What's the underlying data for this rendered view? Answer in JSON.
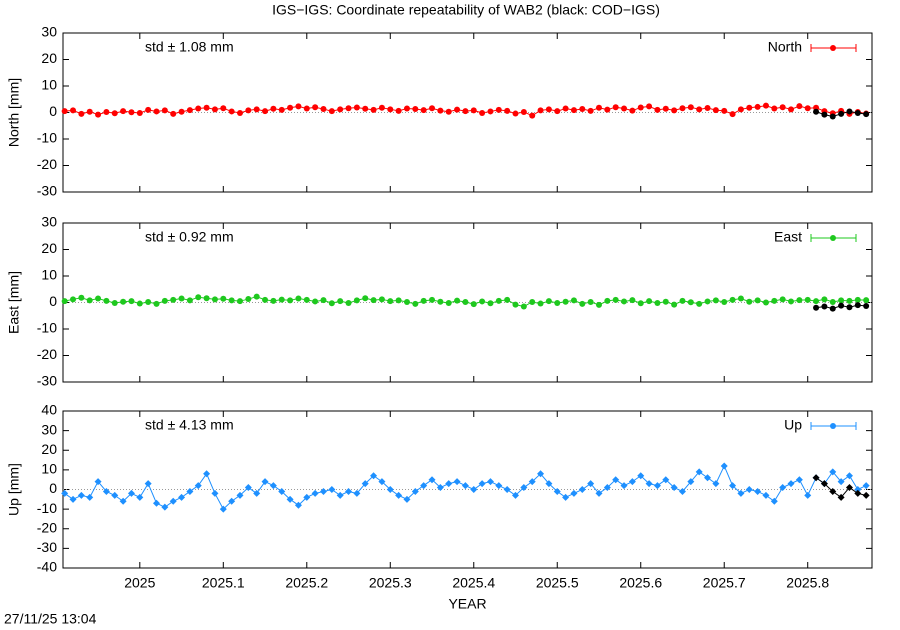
{
  "title": "IGS−IGS: Coordinate repeatability of WAB2 (black: COD−IGS)",
  "timestamp": "27/11/25 13:04",
  "chart_data": [
    {
      "type": "scatter",
      "ylabel": "North [mm]",
      "annotation": "std ± 1.08 mm",
      "marker": "circle",
      "xlim": [
        2024.908,
        2025.877
      ],
      "ylim": [
        -30,
        30
      ],
      "yticks": [
        -30,
        -20,
        -10,
        0,
        10,
        20,
        30
      ],
      "x": [
        2024.91,
        2024.92,
        2024.93,
        2024.94,
        2024.95,
        2024.96,
        2024.97,
        2024.98,
        2024.99,
        2025.0,
        2025.01,
        2025.02,
        2025.03,
        2025.04,
        2025.05,
        2025.06,
        2025.07,
        2025.08,
        2025.09,
        2025.1,
        2025.11,
        2025.12,
        2025.13,
        2025.14,
        2025.15,
        2025.16,
        2025.17,
        2025.18,
        2025.19,
        2025.2,
        2025.21,
        2025.22,
        2025.23,
        2025.24,
        2025.25,
        2025.26,
        2025.27,
        2025.28,
        2025.29,
        2025.3,
        2025.31,
        2025.32,
        2025.33,
        2025.34,
        2025.35,
        2025.36,
        2025.37,
        2025.38,
        2025.39,
        2025.4,
        2025.41,
        2025.42,
        2025.43,
        2025.44,
        2025.45,
        2025.46,
        2025.47,
        2025.48,
        2025.49,
        2025.5,
        2025.51,
        2025.52,
        2025.53,
        2025.54,
        2025.55,
        2025.56,
        2025.57,
        2025.58,
        2025.59,
        2025.6,
        2025.61,
        2025.62,
        2025.63,
        2025.64,
        2025.65,
        2025.66,
        2025.67,
        2025.68,
        2025.69,
        2025.7,
        2025.71,
        2025.72,
        2025.73,
        2025.74,
        2025.75,
        2025.76,
        2025.77,
        2025.78,
        2025.79,
        2025.8,
        2025.81,
        2025.82,
        2025.83,
        2025.84,
        2025.85,
        2025.86,
        2025.87
      ],
      "series": [
        {
          "name": "North",
          "color": "#ff0000",
          "values": [
            0.5,
            0.8,
            -0.5,
            0.3,
            -0.8,
            0.2,
            -0.3,
            0.5,
            0.1,
            -0.2,
            1.0,
            0.4,
            0.8,
            -0.5,
            0.3,
            0.9,
            1.5,
            1.8,
            1.2,
            1.6,
            0.4,
            -0.2,
            0.8,
            1.2,
            0.5,
            1.4,
            1.0,
            1.8,
            2.3,
            1.5,
            2.0,
            1.3,
            0.5,
            1.2,
            1.6,
            1.9,
            1.4,
            1.0,
            1.8,
            1.2,
            0.6,
            1.5,
            1.3,
            0.9,
            1.6,
            0.7,
            0.3,
            1.1,
            0.5,
            0.8,
            -0.2,
            0.4,
            1.0,
            0.6,
            -0.4,
            0.2,
            -1.2,
            0.8,
            1.2,
            0.5,
            1.5,
            0.9,
            1.3,
            0.6,
            1.8,
            1.1,
            2.0,
            1.5,
            0.7,
            1.9,
            2.3,
            1.0,
            1.4,
            0.8,
            1.6,
            2.0,
            1.2,
            1.7,
            0.9,
            0.6,
            -0.6,
            1.2,
            1.8,
            2.1,
            2.6,
            1.5,
            2.0,
            1.2,
            2.4,
            1.6,
            1.8,
            0.5,
            -0.3,
            0.6,
            -0.5,
            0.2,
            -0.4
          ]
        },
        {
          "color": "#000000",
          "x": [
            2025.81,
            2025.82,
            2025.83,
            2025.84,
            2025.85,
            2025.86,
            2025.87
          ],
          "values": [
            0.3,
            -0.8,
            -1.5,
            -0.5,
            0.4,
            -0.2,
            -0.6
          ]
        }
      ]
    },
    {
      "type": "scatter",
      "ylabel": "East [mm]",
      "annotation": "std ± 0.92 mm",
      "marker": "circle",
      "xlim": [
        2024.908,
        2025.877
      ],
      "ylim": [
        -30,
        30
      ],
      "yticks": [
        -30,
        -20,
        -10,
        0,
        10,
        20,
        30
      ],
      "x": [
        2024.91,
        2024.92,
        2024.93,
        2024.94,
        2024.95,
        2024.96,
        2024.97,
        2024.98,
        2024.99,
        2025.0,
        2025.01,
        2025.02,
        2025.03,
        2025.04,
        2025.05,
        2025.06,
        2025.07,
        2025.08,
        2025.09,
        2025.1,
        2025.11,
        2025.12,
        2025.13,
        2025.14,
        2025.15,
        2025.16,
        2025.17,
        2025.18,
        2025.19,
        2025.2,
        2025.21,
        2025.22,
        2025.23,
        2025.24,
        2025.25,
        2025.26,
        2025.27,
        2025.28,
        2025.29,
        2025.3,
        2025.31,
        2025.32,
        2025.33,
        2025.34,
        2025.35,
        2025.36,
        2025.37,
        2025.38,
        2025.39,
        2025.4,
        2025.41,
        2025.42,
        2025.43,
        2025.44,
        2025.45,
        2025.46,
        2025.47,
        2025.48,
        2025.49,
        2025.5,
        2025.51,
        2025.52,
        2025.53,
        2025.54,
        2025.55,
        2025.56,
        2025.57,
        2025.58,
        2025.59,
        2025.6,
        2025.61,
        2025.62,
        2025.63,
        2025.64,
        2025.65,
        2025.66,
        2025.67,
        2025.68,
        2025.69,
        2025.7,
        2025.71,
        2025.72,
        2025.73,
        2025.74,
        2025.75,
        2025.76,
        2025.77,
        2025.78,
        2025.79,
        2025.8,
        2025.81,
        2025.82,
        2025.83,
        2025.84,
        2025.85,
        2025.86,
        2025.87
      ],
      "series": [
        {
          "name": "East",
          "color": "#1ec81e",
          "values": [
            0.5,
            1.2,
            1.8,
            0.8,
            1.5,
            0.6,
            -0.2,
            0.3,
            0.5,
            -0.4,
            0.2,
            -0.5,
            0.6,
            1.0,
            1.5,
            0.8,
            2.0,
            1.6,
            1.2,
            1.4,
            0.8,
            0.5,
            1.3,
            2.2,
            1.0,
            0.6,
            1.1,
            0.8,
            1.5,
            1.0,
            0.4,
            0.9,
            -0.3,
            0.5,
            -0.2,
            0.8,
            1.6,
            0.9,
            1.2,
            0.5,
            0.8,
            0.2,
            -0.5,
            0.6,
            1.0,
            0.3,
            -0.2,
            0.7,
            0.2,
            -0.6,
            0.4,
            -0.3,
            0.6,
            1.0,
            -0.8,
            -1.5,
            0.2,
            -0.4,
            0.5,
            -0.2,
            0.3,
            0.8,
            -0.5,
            0.2,
            -0.9,
            0.6,
            1.0,
            0.4,
            0.9,
            -0.3,
            0.5,
            -0.2,
            0.3,
            -0.8,
            0.6,
            0.1,
            -0.5,
            0.4,
            0.8,
            0.2,
            1.0,
            1.5,
            0.3,
            0.8,
            0.0,
            0.6,
            1.2,
            0.4,
            0.9,
            1.0,
            0.5,
            1.2,
            0.2,
            0.8,
            0.6,
            1.0,
            0.9
          ]
        },
        {
          "color": "#000000",
          "x": [
            2025.81,
            2025.82,
            2025.83,
            2025.84,
            2025.85,
            2025.86,
            2025.87
          ],
          "values": [
            -2.0,
            -1.5,
            -2.3,
            -1.2,
            -1.8,
            -1.0,
            -1.3
          ]
        }
      ]
    },
    {
      "type": "scatter",
      "ylabel": "Up [mm]",
      "xlabel": "YEAR",
      "annotation": "std ± 4.13 mm",
      "marker": "diamond",
      "xlim": [
        2024.908,
        2025.877
      ],
      "ylim": [
        -40,
        40
      ],
      "yticks": [
        -40,
        -30,
        -20,
        -10,
        0,
        10,
        20,
        30,
        40
      ],
      "xticks": [
        2025,
        2025.1,
        2025.2,
        2025.3,
        2025.4,
        2025.5,
        2025.6,
        2025.7,
        2025.8
      ],
      "x": [
        2024.91,
        2024.92,
        2024.93,
        2024.94,
        2024.95,
        2024.96,
        2024.97,
        2024.98,
        2024.99,
        2025.0,
        2025.01,
        2025.02,
        2025.03,
        2025.04,
        2025.05,
        2025.06,
        2025.07,
        2025.08,
        2025.09,
        2025.1,
        2025.11,
        2025.12,
        2025.13,
        2025.14,
        2025.15,
        2025.16,
        2025.17,
        2025.18,
        2025.19,
        2025.2,
        2025.21,
        2025.22,
        2025.23,
        2025.24,
        2025.25,
        2025.26,
        2025.27,
        2025.28,
        2025.29,
        2025.3,
        2025.31,
        2025.32,
        2025.33,
        2025.34,
        2025.35,
        2025.36,
        2025.37,
        2025.38,
        2025.39,
        2025.4,
        2025.41,
        2025.42,
        2025.43,
        2025.44,
        2025.45,
        2025.46,
        2025.47,
        2025.48,
        2025.49,
        2025.5,
        2025.51,
        2025.52,
        2025.53,
        2025.54,
        2025.55,
        2025.56,
        2025.57,
        2025.58,
        2025.59,
        2025.6,
        2025.61,
        2025.62,
        2025.63,
        2025.64,
        2025.65,
        2025.66,
        2025.67,
        2025.68,
        2025.69,
        2025.7,
        2025.71,
        2025.72,
        2025.73,
        2025.74,
        2025.75,
        2025.76,
        2025.77,
        2025.78,
        2025.79,
        2025.8,
        2025.81,
        2025.82,
        2025.83,
        2025.84,
        2025.85,
        2025.86,
        2025.87
      ],
      "series": [
        {
          "name": "Up",
          "color": "#1e90ff",
          "values": [
            -2,
            -5,
            -3,
            -4,
            4,
            -1,
            -3,
            -6,
            -2,
            -4,
            3,
            -7,
            -9,
            -6,
            -4,
            -1,
            2,
            8,
            -2,
            -10,
            -6,
            -3,
            1,
            -2,
            4,
            2,
            -1,
            -5,
            -8,
            -4,
            -2,
            -1,
            0,
            -3,
            -1,
            -2,
            3,
            7,
            4,
            0,
            -3,
            -5,
            -1,
            2,
            5,
            1,
            3,
            4,
            2,
            0,
            3,
            4,
            2,
            0,
            -3,
            1,
            4,
            8,
            3,
            -1,
            -4,
            -2,
            0,
            3,
            -2,
            1,
            5,
            2,
            4,
            7,
            3,
            2,
            5,
            1,
            -1,
            4,
            9,
            6,
            3,
            12,
            2,
            -2,
            0,
            -1,
            -3,
            -6,
            1,
            3,
            5,
            -3,
            6,
            3,
            9,
            4,
            7,
            0,
            2
          ]
        },
        {
          "color": "#000000",
          "x": [
            2025.81,
            2025.82,
            2025.83,
            2025.84,
            2025.85,
            2025.86,
            2025.87
          ],
          "values": [
            6,
            3,
            -1,
            -4,
            1,
            -2,
            -3
          ]
        }
      ]
    }
  ]
}
